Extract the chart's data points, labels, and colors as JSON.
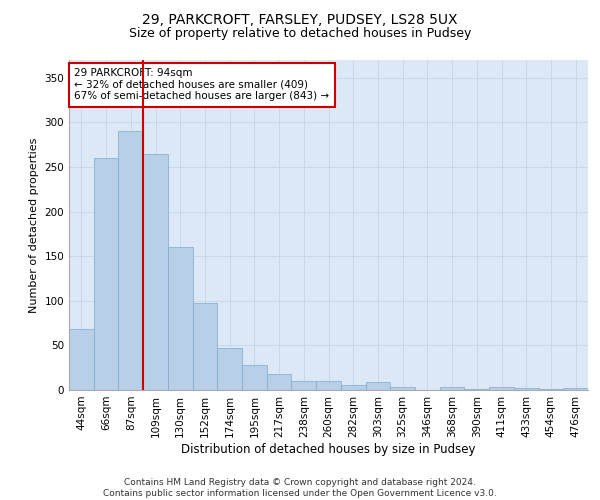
{
  "title1": "29, PARKCROFT, FARSLEY, PUDSEY, LS28 5UX",
  "title2": "Size of property relative to detached houses in Pudsey",
  "xlabel": "Distribution of detached houses by size in Pudsey",
  "ylabel": "Number of detached properties",
  "categories": [
    "44sqm",
    "66sqm",
    "87sqm",
    "109sqm",
    "130sqm",
    "152sqm",
    "174sqm",
    "195sqm",
    "217sqm",
    "238sqm",
    "260sqm",
    "282sqm",
    "303sqm",
    "325sqm",
    "346sqm",
    "368sqm",
    "390sqm",
    "411sqm",
    "433sqm",
    "454sqm",
    "476sqm"
  ],
  "values": [
    68,
    260,
    290,
    265,
    160,
    97,
    47,
    28,
    18,
    10,
    10,
    6,
    9,
    3,
    0,
    3,
    1,
    3,
    2,
    1,
    2
  ],
  "bar_color": "#b8cfe8",
  "bar_edge_color": "#7aabcf",
  "vline_color": "#cc0000",
  "annotation_text": "29 PARKCROFT: 94sqm\n← 32% of detached houses are smaller (409)\n67% of semi-detached houses are larger (843) →",
  "annotation_box_color": "white",
  "annotation_box_edge_color": "#cc0000",
  "ylim": [
    0,
    370
  ],
  "yticks": [
    0,
    50,
    100,
    150,
    200,
    250,
    300,
    350
  ],
  "grid_color": "#c8d8e8",
  "background_color": "#dce8f5",
  "footer": "Contains HM Land Registry data © Crown copyright and database right 2024.\nContains public sector information licensed under the Open Government Licence v3.0.",
  "title1_fontsize": 10,
  "title2_fontsize": 9,
  "xlabel_fontsize": 8.5,
  "ylabel_fontsize": 8,
  "tick_fontsize": 7.5,
  "annotation_fontsize": 7.5,
  "footer_fontsize": 6.5
}
